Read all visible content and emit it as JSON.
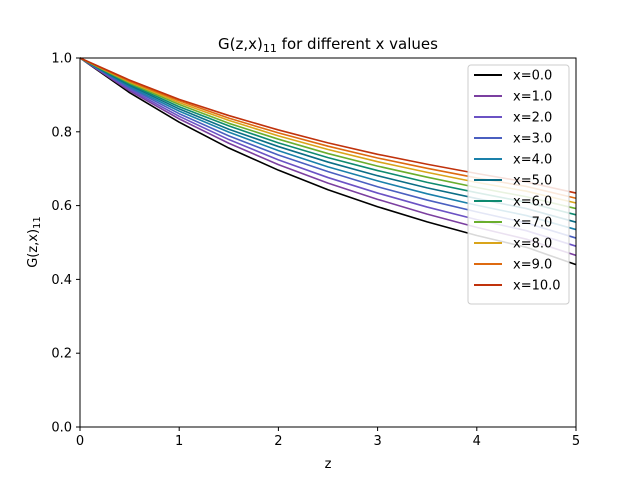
{
  "chart_data": {
    "type": "line",
    "title": "G(z,x)",
    "title_subscript": "11",
    "title_suffix": " for different x values",
    "xlabel": "z",
    "ylabel": "G(z,x)",
    "ylabel_subscript": "11",
    "xlim": [
      0,
      5
    ],
    "ylim": [
      0,
      1
    ],
    "xticks": [
      "0",
      "1",
      "2",
      "3",
      "4",
      "5"
    ],
    "yticks": [
      "0.0",
      "0.2",
      "0.4",
      "0.6",
      "0.8",
      "1.0"
    ],
    "grid": false,
    "legend_position": "top-right",
    "x": [
      0,
      0.5,
      1,
      1.5,
      2,
      2.5,
      3,
      3.5,
      4,
      4.5,
      5
    ],
    "series": [
      {
        "name": "x=0.0",
        "color": "#000000",
        "values": [
          1.0,
          0.906,
          0.826,
          0.756,
          0.696,
          0.643,
          0.597,
          0.556,
          0.519,
          0.487,
          0.44
        ]
      },
      {
        "name": "x=1.0",
        "color": "#7b3fa0",
        "values": [
          1.0,
          0.911,
          0.835,
          0.769,
          0.711,
          0.661,
          0.617,
          0.577,
          0.541,
          0.509,
          0.465
        ]
      },
      {
        "name": "x=2.0",
        "color": "#6b52c4",
        "values": [
          1.0,
          0.915,
          0.842,
          0.779,
          0.724,
          0.676,
          0.634,
          0.596,
          0.562,
          0.532,
          0.49
        ]
      },
      {
        "name": "x=3.0",
        "color": "#4a5fc0",
        "values": [
          1.0,
          0.919,
          0.849,
          0.789,
          0.737,
          0.692,
          0.651,
          0.615,
          0.583,
          0.553,
          0.512
        ]
      },
      {
        "name": "x=4.0",
        "color": "#1a80aa",
        "values": [
          1.0,
          0.922,
          0.856,
          0.799,
          0.749,
          0.705,
          0.667,
          0.632,
          0.601,
          0.573,
          0.535
        ]
      },
      {
        "name": "x=5.0",
        "color": "#0b6e86",
        "values": [
          1.0,
          0.926,
          0.862,
          0.807,
          0.76,
          0.718,
          0.681,
          0.648,
          0.619,
          0.592,
          0.555
        ]
      },
      {
        "name": "x=6.0",
        "color": "#0e8a70",
        "values": [
          1.0,
          0.929,
          0.868,
          0.816,
          0.77,
          0.73,
          0.695,
          0.663,
          0.635,
          0.609,
          0.575
        ]
      },
      {
        "name": "x=7.0",
        "color": "#6aae2e",
        "values": [
          1.0,
          0.932,
          0.874,
          0.823,
          0.78,
          0.741,
          0.707,
          0.677,
          0.649,
          0.624,
          0.592
        ]
      },
      {
        "name": "x=8.0",
        "color": "#d9a41a",
        "values": [
          1.0,
          0.935,
          0.879,
          0.831,
          0.789,
          0.752,
          0.719,
          0.69,
          0.663,
          0.639,
          0.607
        ]
      },
      {
        "name": "x=9.0",
        "color": "#de6a10",
        "values": [
          1.0,
          0.937,
          0.884,
          0.837,
          0.797,
          0.761,
          0.729,
          0.701,
          0.675,
          0.652,
          0.62
        ]
      },
      {
        "name": "x=10.0",
        "color": "#c0320c",
        "values": [
          1.0,
          0.94,
          0.888,
          0.844,
          0.805,
          0.77,
          0.739,
          0.712,
          0.687,
          0.664,
          0.634
        ]
      }
    ]
  }
}
